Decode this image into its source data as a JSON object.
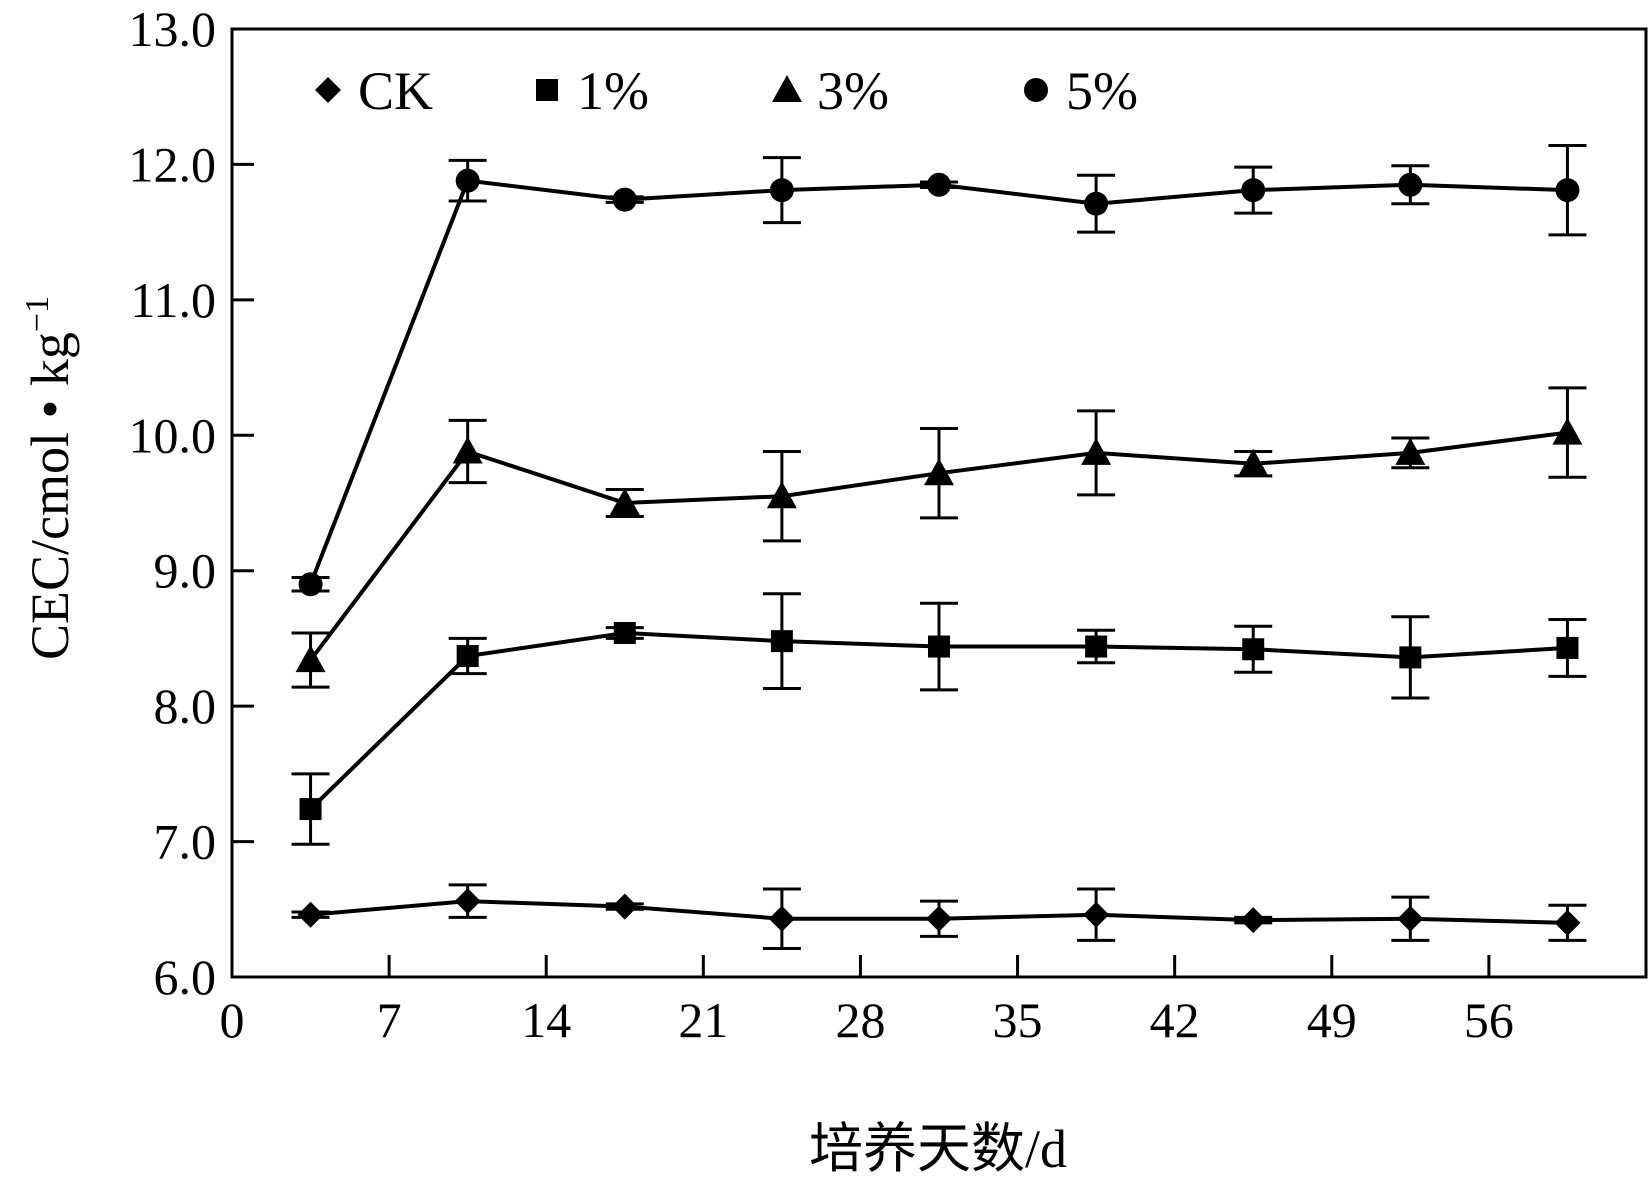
{
  "chart_data": {
    "type": "line",
    "title": "",
    "xlabel": "培养天数/d",
    "ylabel": "CEC/cmol·kg⁻¹",
    "ylabel_parts": {
      "main": "CEC/cmol • kg",
      "sup": "−1"
    },
    "xlim": [
      0,
      63
    ],
    "ylim": [
      6.0,
      13.0
    ],
    "x_ticks": [
      0,
      7,
      14,
      21,
      28,
      35,
      42,
      49,
      56
    ],
    "x_tick_labels": [
      "0",
      "7",
      "14",
      "21",
      "28",
      "35",
      "42",
      "49",
      "56"
    ],
    "y_ticks": [
      6.0,
      7.0,
      8.0,
      9.0,
      10.0,
      11.0,
      12.0,
      13.0
    ],
    "y_tick_labels": [
      "6.0",
      "7.0",
      "8.0",
      "9.0",
      "10.0",
      "11.0",
      "12.0",
      "13.0"
    ],
    "grid": false,
    "legend_position": "top-left",
    "x": [
      3.5,
      10.5,
      17.5,
      24.5,
      31.5,
      38.5,
      45.5,
      52.5,
      59.5
    ],
    "series": [
      {
        "name": "CK",
        "marker": "diamond",
        "values": [
          6.46,
          6.56,
          6.52,
          6.43,
          6.43,
          6.46,
          6.42,
          6.43,
          6.4
        ],
        "errors": [
          0.02,
          0.12,
          0.02,
          0.22,
          0.13,
          0.19,
          0.02,
          0.16,
          0.13
        ]
      },
      {
        "name": "1%",
        "marker": "square",
        "values": [
          7.24,
          8.37,
          8.54,
          8.48,
          8.44,
          8.44,
          8.42,
          8.36,
          8.43
        ],
        "errors": [
          0.26,
          0.13,
          0.04,
          0.35,
          0.32,
          0.12,
          0.17,
          0.3,
          0.21
        ]
      },
      {
        "name": "3%",
        "marker": "triangle",
        "values": [
          8.34,
          9.88,
          9.5,
          9.55,
          9.72,
          9.87,
          9.79,
          9.87,
          10.02
        ],
        "errors": [
          0.2,
          0.23,
          0.1,
          0.33,
          0.33,
          0.31,
          0.09,
          0.11,
          0.33
        ]
      },
      {
        "name": "5%",
        "marker": "circle",
        "values": [
          8.9,
          11.88,
          11.74,
          11.81,
          11.85,
          11.71,
          11.81,
          11.85,
          11.81
        ],
        "errors": [
          0.05,
          0.15,
          0.02,
          0.24,
          0.02,
          0.21,
          0.17,
          0.14,
          0.33
        ]
      }
    ],
    "colors": {
      "line": "#000000",
      "marker": "#000000"
    }
  }
}
